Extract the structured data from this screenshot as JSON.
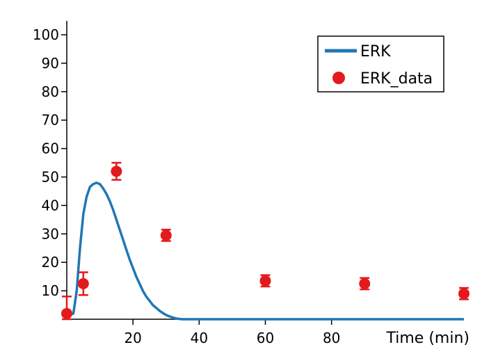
{
  "chart_data": {
    "type": "line",
    "title": "",
    "xlabel": "Time (min)",
    "ylabel": "",
    "xlim": [
      0,
      120
    ],
    "ylim": [
      0,
      100
    ],
    "x_ticks": [
      20,
      40,
      60,
      80
    ],
    "y_ticks": [
      10,
      20,
      30,
      40,
      50,
      60,
      70,
      80,
      90,
      100
    ],
    "grid": false,
    "legend_position": "top-right",
    "colors": {
      "model": "#1f77b4",
      "data": "#e31a1c"
    },
    "series": [
      {
        "name": "ERK",
        "kind": "line",
        "x": [
          0,
          2,
          3,
          4,
          5,
          6,
          7,
          8,
          9,
          10,
          11,
          12,
          13,
          14,
          15,
          16,
          17,
          18,
          19,
          20,
          21,
          22,
          23,
          24,
          25,
          26,
          27,
          28,
          29,
          30,
          31,
          32,
          33,
          34,
          35,
          36,
          37,
          38,
          40,
          45,
          50,
          60,
          70,
          80,
          90,
          100,
          110,
          120
        ],
        "y": [
          1,
          2,
          10,
          25,
          37,
          43,
          46.5,
          47.5,
          48,
          47.5,
          46,
          44,
          41.5,
          38.5,
          35,
          31.5,
          28,
          24.5,
          21,
          18,
          15,
          12.5,
          10,
          8,
          6.5,
          5,
          4,
          3,
          2.2,
          1.5,
          1,
          0.6,
          0.3,
          0.1,
          0,
          0,
          0,
          0,
          0,
          0,
          0,
          0,
          0,
          0,
          0,
          0,
          0,
          0
        ]
      },
      {
        "name": "ERK_data",
        "kind": "scatter",
        "x": [
          0,
          5,
          15,
          30,
          60,
          90,
          120
        ],
        "y": [
          2,
          12.5,
          52,
          29.5,
          13.5,
          12.5,
          9
        ],
        "err": [
          6,
          4,
          3,
          2,
          2,
          2,
          2
        ]
      }
    ]
  }
}
